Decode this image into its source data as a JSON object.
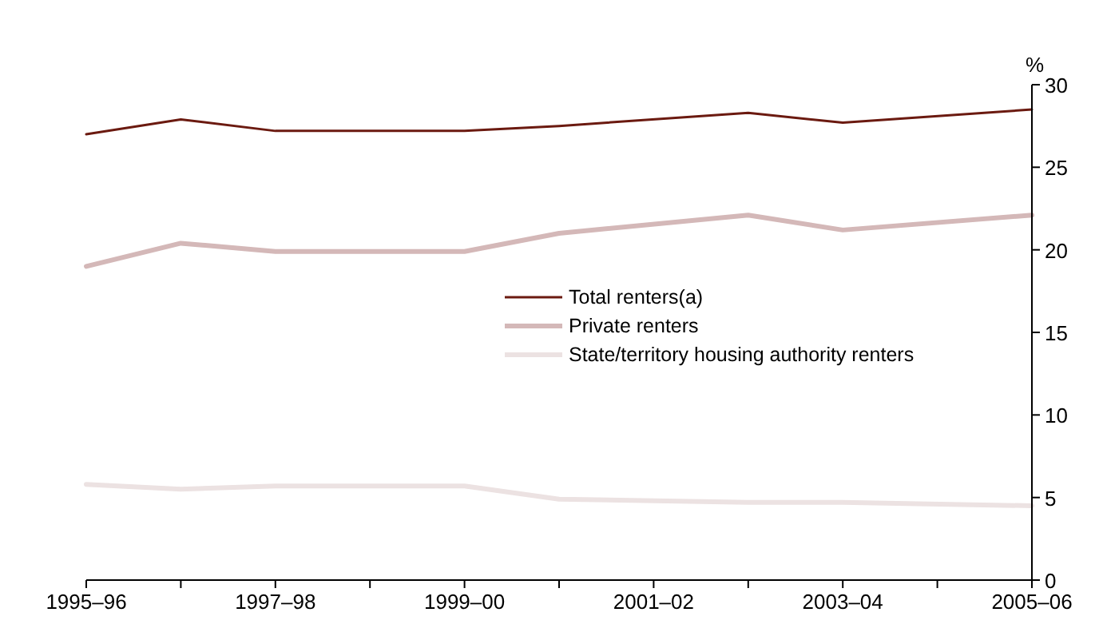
{
  "chart_data": {
    "type": "line",
    "ylabel": "%",
    "categories": [
      "1995–96",
      null,
      "1997–98",
      null,
      "1999–00",
      null,
      "2001–02",
      null,
      "2003–04",
      null,
      "2005–06"
    ],
    "ylim": [
      0,
      30
    ],
    "yticks": [
      0,
      5,
      10,
      15,
      20,
      25,
      30
    ],
    "grid": false,
    "legend": "right",
    "marker": "none",
    "line_style": "solid",
    "series": [
      {
        "name": "Total renters(a)",
        "color": "#6b1a10",
        "values": [
          27.0,
          27.9,
          27.2,
          null,
          27.2,
          27.5,
          null,
          28.3,
          27.7,
          null,
          28.5
        ]
      },
      {
        "name": "Private renters",
        "color": "#d4b8b8",
        "values": [
          19.0,
          20.4,
          19.9,
          null,
          19.9,
          21.0,
          null,
          22.1,
          21.2,
          null,
          22.1
        ]
      },
      {
        "name": "State/territory housing authority renters",
        "color": "#ece2e2",
        "values": [
          5.8,
          5.5,
          5.7,
          null,
          5.7,
          4.9,
          null,
          4.7,
          4.7,
          null,
          4.5
        ]
      }
    ]
  }
}
